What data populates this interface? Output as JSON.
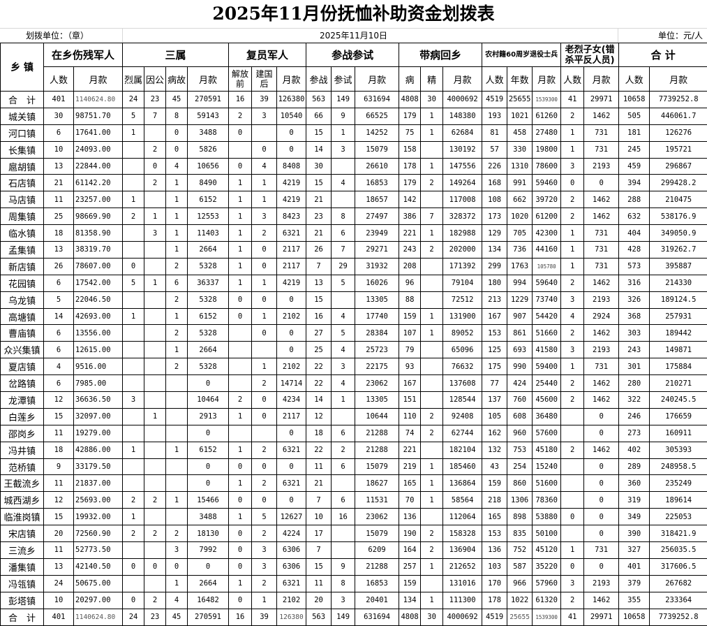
{
  "title": "2025年11月份抚恤补助资金划拨表",
  "sub": {
    "unit_left": "划拨单位：（章）",
    "date": "2025年11月10日",
    "unit_right": "单位：元/人"
  },
  "header": {
    "town": "乡 镇",
    "groups": [
      "在乡伤残军人",
      "三属",
      "复员军人",
      "参战参试",
      "带病回乡",
      "农村籍60周岁退役士兵",
      "老烈子女(错杀平反人员)",
      "合 计"
    ],
    "sub": [
      "人数",
      "月款",
      "烈属",
      "因公",
      "病故",
      "月款",
      "解放前",
      "建国后",
      "月款",
      "参战",
      "参试",
      "月款",
      "病",
      "精",
      "月款",
      "人数",
      "年数",
      "月款",
      "人数",
      "月款",
      "人数",
      "月款"
    ]
  },
  "total_label": "合　计",
  "totals": [
    "401",
    "1140624.80",
    "24",
    "23",
    "45",
    "270591",
    "16",
    "39",
    "126380",
    "563",
    "149",
    "631694",
    "4808",
    "30",
    "4000692",
    "4519",
    "25655",
    "1539300",
    "41",
    "29971",
    "10658",
    "7739252.8"
  ],
  "rows": [
    {
      "town": "城关镇",
      "v": [
        "30",
        "98751.70",
        "5",
        "7",
        "8",
        "59143",
        "2",
        "3",
        "10540",
        "66",
        "9",
        "66525",
        "179",
        "1",
        "148380",
        "193",
        "1021",
        "61260",
        "2",
        "1462",
        "505",
        "446061.7"
      ]
    },
    {
      "town": "河口镇",
      "v": [
        "6",
        "17641.00",
        "1",
        "",
        "0",
        "3488",
        "0",
        "",
        "0",
        "15",
        "1",
        "14252",
        "75",
        "1",
        "62684",
        "81",
        "458",
        "27480",
        "1",
        "731",
        "181",
        "126276"
      ]
    },
    {
      "town": "长集镇",
      "v": [
        "10",
        "24093.00",
        "",
        "2",
        "0",
        "5826",
        "",
        "0",
        "0",
        "14",
        "3",
        "15079",
        "158",
        "",
        "130192",
        "57",
        "330",
        "19800",
        "1",
        "731",
        "245",
        "195721"
      ]
    },
    {
      "town": "扈胡镇",
      "v": [
        "13",
        "22844.00",
        "",
        "0",
        "4",
        "10656",
        "0",
        "4",
        "8408",
        "30",
        "",
        "26610",
        "178",
        "1",
        "147556",
        "226",
        "1310",
        "78600",
        "3",
        "2193",
        "459",
        "296867"
      ]
    },
    {
      "town": "石店镇",
      "v": [
        "21",
        "61142.20",
        "",
        "2",
        "1",
        "8490",
        "1",
        "1",
        "4219",
        "15",
        "4",
        "16853",
        "179",
        "2",
        "149264",
        "168",
        "991",
        "59460",
        "0",
        "0",
        "394",
        "299428.2"
      ]
    },
    {
      "town": "马店镇",
      "v": [
        "11",
        "23257.00",
        "1",
        "",
        "1",
        "6152",
        "1",
        "1",
        "4219",
        "21",
        "",
        "18657",
        "142",
        "",
        "117008",
        "108",
        "662",
        "39720",
        "2",
        "1462",
        "288",
        "210475"
      ]
    },
    {
      "town": "周集镇",
      "v": [
        "25",
        "98669.90",
        "2",
        "1",
        "1",
        "12553",
        "1",
        "3",
        "8423",
        "23",
        "8",
        "27497",
        "386",
        "7",
        "328372",
        "173",
        "1020",
        "61200",
        "2",
        "1462",
        "632",
        "538176.9"
      ]
    },
    {
      "town": "临水镇",
      "v": [
        "18",
        "81358.90",
        "",
        "3",
        "1",
        "11403",
        "1",
        "2",
        "6321",
        "21",
        "6",
        "23949",
        "221",
        "1",
        "182988",
        "129",
        "705",
        "42300",
        "1",
        "731",
        "404",
        "349050.9"
      ]
    },
    {
      "town": "孟集镇",
      "v": [
        "13",
        "38319.70",
        "",
        "",
        "1",
        "2664",
        "1",
        "0",
        "2117",
        "26",
        "7",
        "29271",
        "243",
        "2",
        "202000",
        "134",
        "736",
        "44160",
        "1",
        "731",
        "428",
        "319262.7"
      ]
    },
    {
      "town": "新店镇",
      "v": [
        "26",
        "78607.00",
        "0",
        "",
        "2",
        "5328",
        "1",
        "0",
        "2117",
        "7",
        "29",
        "31932",
        "208",
        "",
        "171392",
        "299",
        "1763",
        "105780",
        "1",
        "731",
        "573",
        "395887"
      ]
    },
    {
      "town": "花园镇",
      "v": [
        "6",
        "17542.00",
        "5",
        "1",
        "6",
        "36337",
        "1",
        "1",
        "4219",
        "13",
        "5",
        "16026",
        "96",
        "",
        "79104",
        "180",
        "994",
        "59640",
        "2",
        "1462",
        "316",
        "214330"
      ]
    },
    {
      "town": "乌龙镇",
      "v": [
        "5",
        "22046.50",
        "",
        "",
        "2",
        "5328",
        "0",
        "0",
        "0",
        "15",
        "",
        "13305",
        "88",
        "",
        "72512",
        "213",
        "1229",
        "73740",
        "3",
        "2193",
        "326",
        "189124.5"
      ]
    },
    {
      "town": "高塘镇",
      "v": [
        "14",
        "42693.00",
        "1",
        "",
        "1",
        "6152",
        "0",
        "1",
        "2102",
        "16",
        "4",
        "17740",
        "159",
        "1",
        "131900",
        "167",
        "907",
        "54420",
        "4",
        "2924",
        "368",
        "257931"
      ]
    },
    {
      "town": "曹庙镇",
      "v": [
        "6",
        "13556.00",
        "",
        "",
        "2",
        "5328",
        "",
        "0",
        "0",
        "27",
        "5",
        "28384",
        "107",
        "1",
        "89052",
        "153",
        "861",
        "51660",
        "2",
        "1462",
        "303",
        "189442"
      ]
    },
    {
      "town": "众兴集镇",
      "v": [
        "6",
        "12615.00",
        "",
        "",
        "1",
        "2664",
        "",
        "",
        "0",
        "25",
        "4",
        "25723",
        "79",
        "",
        "65096",
        "125",
        "693",
        "41580",
        "3",
        "2193",
        "243",
        "149871"
      ]
    },
    {
      "town": "夏店镇",
      "v": [
        "4",
        "9516.00",
        "",
        "",
        "2",
        "5328",
        "",
        "1",
        "2102",
        "22",
        "3",
        "22175",
        "93",
        "",
        "76632",
        "175",
        "990",
        "59400",
        "1",
        "731",
        "301",
        "175884"
      ]
    },
    {
      "town": "岔路镇",
      "v": [
        "6",
        "7985.00",
        "",
        "",
        "",
        "0",
        "",
        "2",
        "14714",
        "22",
        "4",
        "23062",
        "167",
        "",
        "137608",
        "77",
        "424",
        "25440",
        "2",
        "1462",
        "280",
        "210271"
      ]
    },
    {
      "town": "龙潭镇",
      "v": [
        "12",
        "36636.50",
        "3",
        "",
        "",
        "10464",
        "2",
        "0",
        "4234",
        "14",
        "1",
        "13305",
        "151",
        "",
        "128544",
        "137",
        "760",
        "45600",
        "2",
        "1462",
        "322",
        "240245.5"
      ]
    },
    {
      "town": "白莲乡",
      "v": [
        "15",
        "32097.00",
        "",
        "1",
        "",
        "2913",
        "1",
        "0",
        "2117",
        "12",
        "",
        "10644",
        "110",
        "2",
        "92408",
        "105",
        "608",
        "36480",
        "",
        "0",
        "246",
        "176659"
      ]
    },
    {
      "town": "邵岗乡",
      "v": [
        "11",
        "19279.00",
        "",
        "",
        "",
        "0",
        "",
        "",
        "0",
        "18",
        "6",
        "21288",
        "74",
        "2",
        "62744",
        "162",
        "960",
        "57600",
        "",
        "0",
        "273",
        "160911"
      ]
    },
    {
      "town": "冯井镇",
      "v": [
        "18",
        "42886.00",
        "1",
        "",
        "1",
        "6152",
        "1",
        "2",
        "6321",
        "22",
        "2",
        "21288",
        "221",
        "",
        "182104",
        "132",
        "753",
        "45180",
        "2",
        "1462",
        "402",
        "305393"
      ]
    },
    {
      "town": "范桥镇",
      "v": [
        "9",
        "33179.50",
        "",
        "",
        "",
        "0",
        "0",
        "0",
        "0",
        "11",
        "6",
        "15079",
        "219",
        "1",
        "185460",
        "43",
        "254",
        "15240",
        "",
        "0",
        "289",
        "248958.5"
      ]
    },
    {
      "town": "王截流乡",
      "v": [
        "11",
        "21837.00",
        "",
        "",
        "",
        "0",
        "1",
        "2",
        "6321",
        "21",
        "",
        "18627",
        "165",
        "1",
        "136864",
        "159",
        "860",
        "51600",
        "",
        "0",
        "360",
        "235249"
      ]
    },
    {
      "town": "城西湖乡",
      "v": [
        "12",
        "25693.00",
        "2",
        "2",
        "1",
        "15466",
        "0",
        "0",
        "0",
        "7",
        "6",
        "11531",
        "70",
        "1",
        "58564",
        "218",
        "1306",
        "78360",
        "",
        "0",
        "319",
        "189614"
      ]
    },
    {
      "town": "临淮岗镇",
      "v": [
        "15",
        "19932.00",
        "1",
        "",
        "",
        "3488",
        "1",
        "5",
        "12627",
        "10",
        "16",
        "23062",
        "136",
        "",
        "112064",
        "165",
        "898",
        "53880",
        "0",
        "0",
        "349",
        "225053"
      ]
    },
    {
      "town": "宋店镇",
      "v": [
        "20",
        "72560.90",
        "2",
        "2",
        "2",
        "18130",
        "0",
        "2",
        "4224",
        "17",
        "",
        "15079",
        "190",
        "2",
        "158328",
        "153",
        "835",
        "50100",
        "",
        "0",
        "390",
        "318421.9"
      ]
    },
    {
      "town": "三流乡",
      "v": [
        "11",
        "52773.50",
        "",
        "",
        "3",
        "7992",
        "0",
        "3",
        "6306",
        "7",
        "",
        "6209",
        "164",
        "2",
        "136904",
        "136",
        "752",
        "45120",
        "1",
        "731",
        "327",
        "256035.5"
      ]
    },
    {
      "town": "潘集镇",
      "v": [
        "13",
        "42140.50",
        "0",
        "0",
        "0",
        "0",
        "0",
        "3",
        "6306",
        "15",
        "9",
        "21288",
        "257",
        "1",
        "212652",
        "103",
        "587",
        "35220",
        "0",
        "0",
        "401",
        "317606.5"
      ]
    },
    {
      "town": "冯瓴镇",
      "v": [
        "24",
        "50675.00",
        "",
        "",
        "1",
        "2664",
        "1",
        "2",
        "6321",
        "11",
        "8",
        "16853",
        "159",
        "",
        "131016",
        "170",
        "966",
        "57960",
        "3",
        "2193",
        "379",
        "267682"
      ]
    },
    {
      "town": "彭塔镇",
      "v": [
        "10",
        "20297.00",
        "0",
        "2",
        "4",
        "16482",
        "0",
        "1",
        "2102",
        "20",
        "3",
        "20401",
        "134",
        "1",
        "111300",
        "178",
        "1022",
        "61320",
        "2",
        "1462",
        "355",
        "233364"
      ]
    }
  ]
}
